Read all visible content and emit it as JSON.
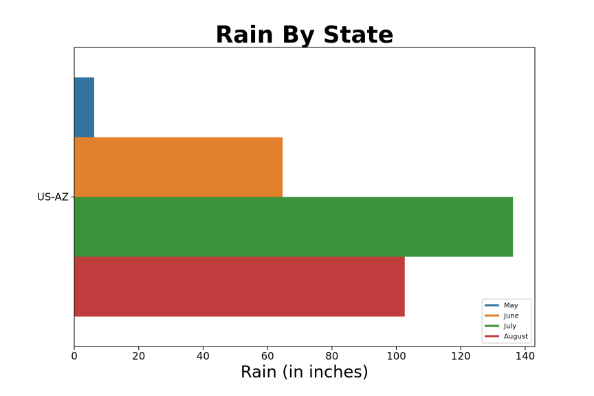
{
  "chart_data": {
    "type": "bar",
    "orientation": "horizontal",
    "title": "Rain By State",
    "xlabel": "Rain (in inches)",
    "ylabel": "",
    "categories": [
      "US-AZ"
    ],
    "series": [
      {
        "name": "May",
        "values": [
          6.2
        ],
        "color": "#3274a1"
      },
      {
        "name": "June",
        "values": [
          64.7
        ],
        "color": "#e1812c"
      },
      {
        "name": "July",
        "values": [
          136.2
        ],
        "color": "#3a923a"
      },
      {
        "name": "August",
        "values": [
          102.6
        ],
        "color": "#c03d3e"
      }
    ],
    "xlim": [
      0,
      143
    ],
    "xticks": [
      0,
      20,
      40,
      60,
      80,
      100,
      120,
      140
    ],
    "grid": false,
    "legend_position": "bottom-right"
  }
}
